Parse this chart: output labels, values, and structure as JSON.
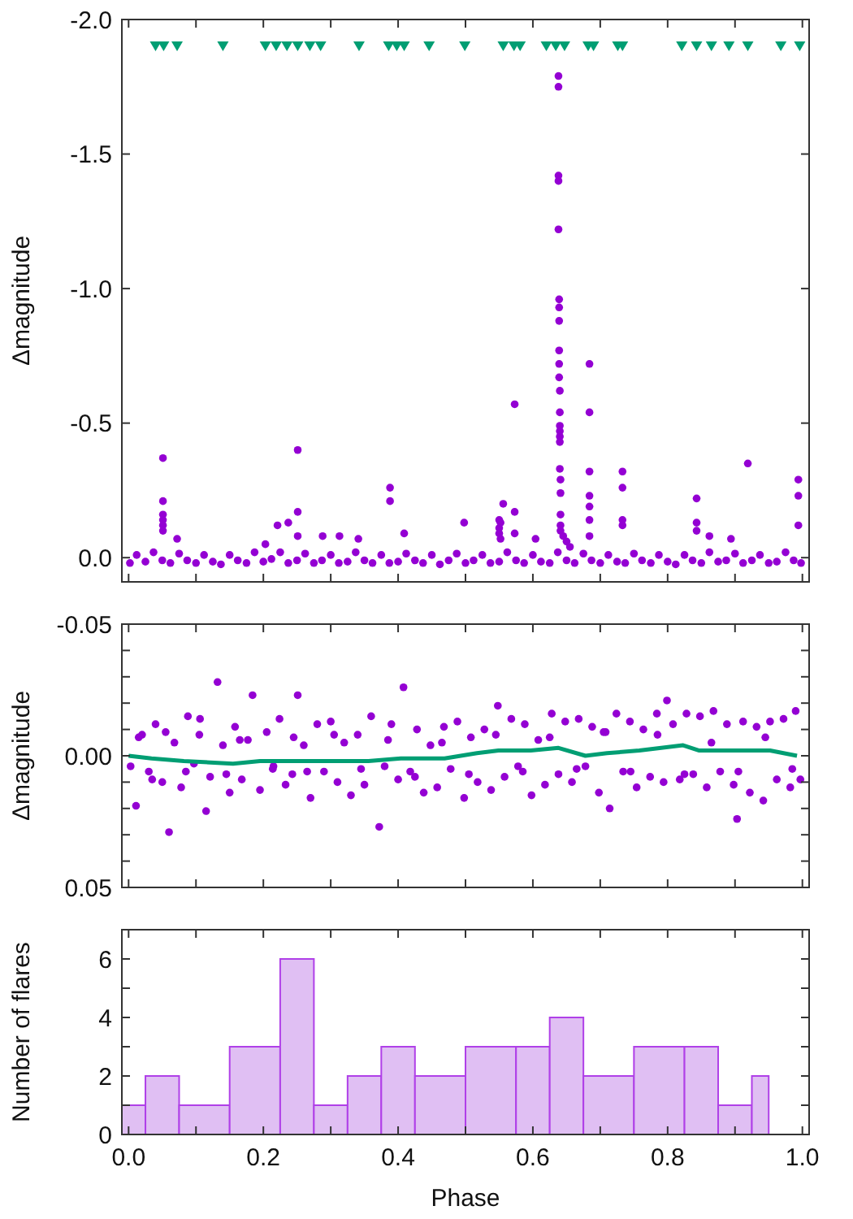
{
  "chart_data": [
    {
      "type": "scatter",
      "ylabel": "Δmagnitude",
      "xlim": [
        -0.01,
        1.01
      ],
      "ylim": [
        0.09,
        -2.0
      ],
      "xticks": [
        {
          "value": 0,
          "label": null
        },
        {
          "value": 0.1,
          "label": null
        },
        {
          "value": 0.2,
          "label": null
        },
        {
          "value": 0.3,
          "label": null
        },
        {
          "value": 0.4,
          "label": null
        },
        {
          "value": 0.5,
          "label": null
        },
        {
          "value": 0.6,
          "label": null
        },
        {
          "value": 0.7,
          "label": null
        },
        {
          "value": 0.8,
          "label": null
        },
        {
          "value": 0.9,
          "label": null
        },
        {
          "value": 1,
          "label": null
        }
      ],
      "yticks": [
        {
          "value": -2,
          "label": "-2.0"
        },
        {
          "value": -1.5,
          "label": "-1.5"
        },
        {
          "value": -1,
          "label": "-1.0"
        },
        {
          "value": -0.5,
          "label": "-0.5"
        },
        {
          "value": 0,
          "label": "0.0"
        }
      ],
      "tick_labels": "y",
      "grid": false,
      "series": [
        {
          "type": "scatter",
          "marker": "circle",
          "color": "#9400d3",
          "x": [
            0.002,
            0.012,
            0.025,
            0.037,
            0.05,
            0.062,
            0.075,
            0.087,
            0.1,
            0.112,
            0.125,
            0.137,
            0.15,
            0.162,
            0.175,
            0.187,
            0.2,
            0.212,
            0.225,
            0.237,
            0.25,
            0.262,
            0.275,
            0.287,
            0.3,
            0.312,
            0.325,
            0.337,
            0.35,
            0.362,
            0.375,
            0.387,
            0.4,
            0.412,
            0.425,
            0.437,
            0.45,
            0.462,
            0.475,
            0.487,
            0.5,
            0.512,
            0.525,
            0.537,
            0.55,
            0.562,
            0.575,
            0.587,
            0.6,
            0.612,
            0.625,
            0.637,
            0.65,
            0.662,
            0.675,
            0.687,
            0.7,
            0.712,
            0.725,
            0.737,
            0.75,
            0.762,
            0.775,
            0.787,
            0.8,
            0.812,
            0.825,
            0.837,
            0.85,
            0.862,
            0.875,
            0.887,
            0.9,
            0.912,
            0.925,
            0.937,
            0.95,
            0.962,
            0.975,
            0.987,
            0.998,
            0.051,
            0.051,
            0.051,
            0.051,
            0.051,
            0.051,
            0.072,
            0.203,
            0.221,
            0.237,
            0.251,
            0.251,
            0.251,
            0.288,
            0.313,
            0.341,
            0.388,
            0.388,
            0.409,
            0.498,
            0.55,
            0.55,
            0.55,
            0.552,
            0.552,
            0.556,
            0.573,
            0.573,
            0.573,
            0.604,
            0.638,
            0.638,
            0.638,
            0.638,
            0.638,
            0.639,
            0.639,
            0.639,
            0.639,
            0.639,
            0.639,
            0.64,
            0.64,
            0.64,
            0.64,
            0.64,
            0.64,
            0.64,
            0.641,
            0.641,
            0.641,
            0.641,
            0.641,
            0.645,
            0.65,
            0.655,
            0.684,
            0.684,
            0.684,
            0.684,
            0.684,
            0.684,
            0.684,
            0.733,
            0.733,
            0.733,
            0.733,
            0.843,
            0.843,
            0.843,
            0.862,
            0.894,
            0.919,
            0.994,
            0.994,
            0.994
          ],
          "values": [
            0.02,
            -0.01,
            0.015,
            -0.02,
            0.01,
            0.02,
            -0.015,
            0.01,
            0.02,
            -0.01,
            0.015,
            0.025,
            -0.01,
            0.01,
            0.02,
            -0.02,
            0.015,
            0.005,
            -0.02,
            0.02,
            0.01,
            -0.015,
            0.02,
            0.01,
            -0.01,
            0.02,
            0.015,
            -0.02,
            0.01,
            0.02,
            -0.01,
            0.02,
            0.015,
            -0.015,
            0.01,
            0.02,
            -0.01,
            0.025,
            0.01,
            -0.015,
            0.02,
            0.01,
            -0.01,
            0.02,
            0.015,
            -0.02,
            0.01,
            0.02,
            -0.01,
            0.015,
            0.02,
            -0.02,
            0.01,
            0.02,
            -0.015,
            0.01,
            0.02,
            -0.01,
            0.015,
            0.02,
            -0.015,
            0.01,
            0.02,
            -0.01,
            0.015,
            0.025,
            -0.01,
            0.01,
            0.02,
            -0.02,
            0.015,
            0.01,
            -0.015,
            0.02,
            0.01,
            -0.01,
            0.02,
            0.015,
            -0.02,
            0.01,
            0.02,
            -0.37,
            -0.21,
            -0.16,
            -0.14,
            -0.12,
            -0.1,
            -0.07,
            -0.05,
            -0.12,
            -0.13,
            -0.4,
            -0.17,
            -0.08,
            -0.08,
            -0.08,
            -0.07,
            -0.26,
            -0.21,
            -0.09,
            -0.13,
            -0.14,
            -0.11,
            -0.09,
            -0.13,
            -0.07,
            -0.2,
            -0.57,
            -0.17,
            -0.09,
            -0.07,
            -1.79,
            -1.75,
            -1.42,
            -1.4,
            -1.22,
            -0.96,
            -0.93,
            -0.88,
            -0.77,
            -0.72,
            -0.67,
            -0.62,
            -0.54,
            -0.49,
            -0.47,
            -0.45,
            -0.43,
            -0.33,
            -0.29,
            -0.24,
            -0.16,
            -0.12,
            -0.1,
            -0.08,
            -0.06,
            -0.04,
            -0.72,
            -0.54,
            -0.32,
            -0.23,
            -0.19,
            -0.14,
            -0.08,
            -0.32,
            -0.26,
            -0.14,
            -0.12,
            -0.22,
            -0.13,
            -0.1,
            -0.08,
            -0.07,
            -0.35,
            -0.29,
            -0.23,
            -0.12
          ]
        },
        {
          "type": "scatter",
          "marker": "triangle",
          "color": "#009e73",
          "x": [
            0.04,
            0.052,
            0.072,
            0.14,
            0.203,
            0.219,
            0.235,
            0.251,
            0.269,
            0.285,
            0.342,
            0.386,
            0.398,
            0.409,
            0.446,
            0.499,
            0.556,
            0.572,
            0.581,
            0.62,
            0.634,
            0.647,
            0.682,
            0.69,
            0.726,
            0.733,
            0.821,
            0.843,
            0.865,
            0.891,
            0.919,
            0.968,
            0.996
          ],
          "values": [
            -1.9,
            -1.9,
            -1.9,
            -1.9,
            -1.9,
            -1.9,
            -1.9,
            -1.9,
            -1.9,
            -1.9,
            -1.9,
            -1.9,
            -1.9,
            -1.9,
            -1.9,
            -1.9,
            -1.9,
            -1.9,
            -1.9,
            -1.9,
            -1.9,
            -1.9,
            -1.9,
            -1.9,
            -1.9,
            -1.9,
            -1.9,
            -1.9,
            -1.9,
            -1.9,
            -1.9,
            -1.9,
            -1.9
          ]
        }
      ]
    },
    {
      "type": "scatter",
      "ylabel": "Δmagnitude",
      "xlim": [
        -0.01,
        1.01
      ],
      "ylim": [
        0.05,
        -0.05
      ],
      "xticks": [
        {
          "value": 0,
          "label": null
        },
        {
          "value": 0.1,
          "label": null
        },
        {
          "value": 0.2,
          "label": null
        },
        {
          "value": 0.3,
          "label": null
        },
        {
          "value": 0.4,
          "label": null
        },
        {
          "value": 0.5,
          "label": null
        },
        {
          "value": 0.6,
          "label": null
        },
        {
          "value": 0.7,
          "label": null
        },
        {
          "value": 0.8,
          "label": null
        },
        {
          "value": 0.9,
          "label": null
        },
        {
          "value": 1,
          "label": null
        }
      ],
      "yticks": [
        {
          "value": -0.05,
          "label": "-0.05"
        },
        {
          "value": -0.04,
          "label": null
        },
        {
          "value": -0.03,
          "label": null
        },
        {
          "value": -0.02,
          "label": null
        },
        {
          "value": -0.01,
          "label": null
        },
        {
          "value": 0,
          "label": "0.00"
        },
        {
          "value": 0.01,
          "label": null
        },
        {
          "value": 0.02,
          "label": null
        },
        {
          "value": 0.03,
          "label": null
        },
        {
          "value": 0.04,
          "label": null
        },
        {
          "value": 0.05,
          "label": "0.05"
        }
      ],
      "tick_labels": "y",
      "grid": false,
      "series": [
        {
          "type": "scatter",
          "marker": "circle",
          "color": "#9400d3",
          "x": [
            0.003,
            0.011,
            0.02,
            0.03,
            0.04,
            0.05,
            0.06,
            0.068,
            0.078,
            0.088,
            0.097,
            0.106,
            0.115,
            0.121,
            0.132,
            0.14,
            0.15,
            0.158,
            0.168,
            0.177,
            0.184,
            0.195,
            0.205,
            0.214,
            0.224,
            0.233,
            0.243,
            0.251,
            0.26,
            0.27,
            0.28,
            0.29,
            0.3,
            0.31,
            0.32,
            0.33,
            0.34,
            0.35,
            0.36,
            0.372,
            0.38,
            0.39,
            0.4,
            0.408,
            0.418,
            0.428,
            0.438,
            0.448,
            0.458,
            0.468,
            0.478,
            0.488,
            0.498,
            0.508,
            0.518,
            0.528,
            0.538,
            0.548,
            0.558,
            0.568,
            0.578,
            0.588,
            0.598,
            0.608,
            0.618,
            0.628,
            0.638,
            0.648,
            0.658,
            0.668,
            0.678,
            0.688,
            0.698,
            0.708,
            0.714,
            0.724,
            0.734,
            0.744,
            0.754,
            0.764,
            0.774,
            0.784,
            0.794,
            0.799,
            0.808,
            0.818,
            0.828,
            0.838,
            0.848,
            0.858,
            0.868,
            0.878,
            0.888,
            0.898,
            0.903,
            0.912,
            0.922,
            0.932,
            0.942,
            0.952,
            0.962,
            0.972,
            0.982,
            0.99,
            0.997,
            0.015,
            0.035,
            0.055,
            0.085,
            0.105,
            0.145,
            0.165,
            0.215,
            0.245,
            0.265,
            0.305,
            0.345,
            0.385,
            0.425,
            0.465,
            0.505,
            0.545,
            0.585,
            0.625,
            0.665,
            0.705,
            0.745,
            0.785,
            0.825,
            0.865,
            0.905,
            0.945,
            0.985
          ],
          "values": [
            0.004,
            0.019,
            -0.008,
            0.006,
            -0.012,
            0.01,
            0.029,
            -0.005,
            0.012,
            -0.015,
            0.003,
            -0.014,
            0.021,
            0.008,
            -0.028,
            -0.004,
            0.014,
            -0.011,
            0.009,
            -0.006,
            -0.023,
            0.013,
            -0.009,
            0.005,
            -0.014,
            0.011,
            0.007,
            -0.023,
            -0.004,
            0.016,
            -0.012,
            0.006,
            -0.013,
            0.01,
            -0.005,
            0.015,
            -0.008,
            0.011,
            -0.015,
            0.027,
            0.004,
            -0.012,
            0.009,
            -0.026,
            0.006,
            -0.01,
            0.014,
            -0.004,
            0.012,
            -0.011,
            0.005,
            -0.013,
            0.016,
            -0.007,
            0.01,
            -0.01,
            0.013,
            -0.019,
            0.008,
            -0.014,
            0.004,
            -0.012,
            0.015,
            -0.006,
            0.011,
            -0.016,
            0.007,
            -0.013,
            0.01,
            -0.014,
            0.004,
            -0.011,
            0.014,
            -0.009,
            0.02,
            -0.016,
            0.006,
            -0.013,
            0.012,
            -0.01,
            0.008,
            -0.016,
            0.01,
            -0.021,
            -0.012,
            0.009,
            -0.016,
            0.007,
            -0.015,
            0.012,
            -0.017,
            0.006,
            -0.012,
            0.011,
            0.024,
            -0.013,
            0.014,
            -0.011,
            0.017,
            -0.013,
            0.009,
            -0.014,
            0.012,
            -0.017,
            0.009,
            -0.007,
            0.009,
            -0.009,
            0.006,
            -0.008,
            0.007,
            -0.006,
            0.004,
            -0.007,
            0.006,
            -0.008,
            0.005,
            -0.006,
            0.008,
            -0.005,
            0.007,
            -0.008,
            0.006,
            -0.007,
            0.005,
            -0.009,
            0.006,
            -0.008,
            0.007,
            -0.005,
            0.006,
            -0.007,
            0.005
          ]
        },
        {
          "type": "line",
          "color": "#009e73",
          "x": [
            0,
            0.034,
            0.082,
            0.155,
            0.195,
            0.275,
            0.356,
            0.404,
            0.469,
            0.517,
            0.549,
            0.597,
            0.638,
            0.678,
            0.71,
            0.758,
            0.823,
            0.847,
            0.879,
            0.952,
            0.992
          ],
          "values": [
            0,
            0.001,
            0.002,
            0.003,
            0.002,
            0.002,
            0.002,
            0.001,
            0.001,
            -0.001,
            -0.002,
            -0.002,
            -0.003,
            0,
            -0.001,
            -0.002,
            -0.004,
            -0.002,
            -0.002,
            -0.002,
            0
          ]
        }
      ]
    },
    {
      "type": "histogram",
      "xlabel": "Phase",
      "ylabel": "Number of flares",
      "xlim": [
        -0.01,
        1.01
      ],
      "ylim": [
        0,
        7
      ],
      "xticks": [
        {
          "value": 0,
          "label": "0.0"
        },
        {
          "value": 0.1,
          "label": null
        },
        {
          "value": 0.2,
          "label": "0.2"
        },
        {
          "value": 0.3,
          "label": null
        },
        {
          "value": 0.4,
          "label": "0.4"
        },
        {
          "value": 0.5,
          "label": null
        },
        {
          "value": 0.6,
          "label": "0.6"
        },
        {
          "value": 0.7,
          "label": null
        },
        {
          "value": 0.8,
          "label": "0.8"
        },
        {
          "value": 0.9,
          "label": null
        },
        {
          "value": 1,
          "label": "1.0"
        }
      ],
      "yticks": [
        0,
        {
          "value": 1,
          "label": null
        },
        2,
        {
          "value": 3,
          "label": null
        },
        4,
        {
          "value": 5,
          "label": null
        },
        6
      ],
      "grid": false,
      "color": "#e0bff3",
      "bins": [
        -0.01,
        0.025,
        0.075,
        0.15,
        0.225,
        0.275,
        0.325,
        0.375,
        0.425,
        0.5,
        0.575,
        0.625,
        0.675,
        0.75,
        0.825,
        0.875,
        0.925,
        0.95
      ],
      "values": [
        1,
        2,
        1,
        3,
        6,
        1,
        2,
        3,
        2,
        3,
        3,
        4,
        2,
        3,
        3,
        1,
        2
      ]
    }
  ]
}
